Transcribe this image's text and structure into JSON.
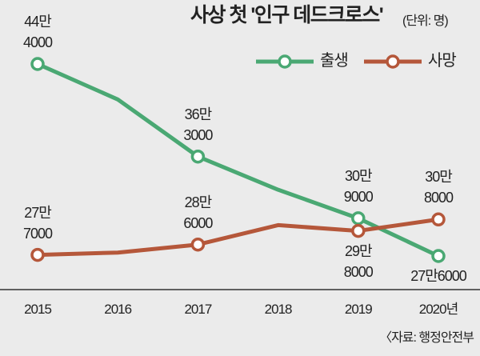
{
  "chart_data": {
    "type": "line",
    "title": "사상 첫 '인구 데드크로스'",
    "subtitle": "(단위: 명)",
    "source": "〈자료: 행정안전부",
    "categories": [
      "2015",
      "2016",
      "2017",
      "2018",
      "2019",
      "2020년"
    ],
    "series": [
      {
        "name": "출생",
        "color": "#4aa873",
        "values": [
          444000,
          413000,
          363000,
          334000,
          309000,
          276000
        ],
        "value_labels": [
          "44만\n4000",
          null,
          "36만\n3000",
          null,
          "30만\n9000",
          "27만6000"
        ]
      },
      {
        "name": "사망",
        "color": "#b5573a",
        "values": [
          277000,
          279000,
          286000,
          303000,
          298000,
          308000
        ],
        "value_labels": [
          "27만\n7000",
          null,
          "28만\n6000",
          null,
          "29만\n8000",
          "30만\n8000"
        ]
      }
    ],
    "legend": "top-right"
  }
}
